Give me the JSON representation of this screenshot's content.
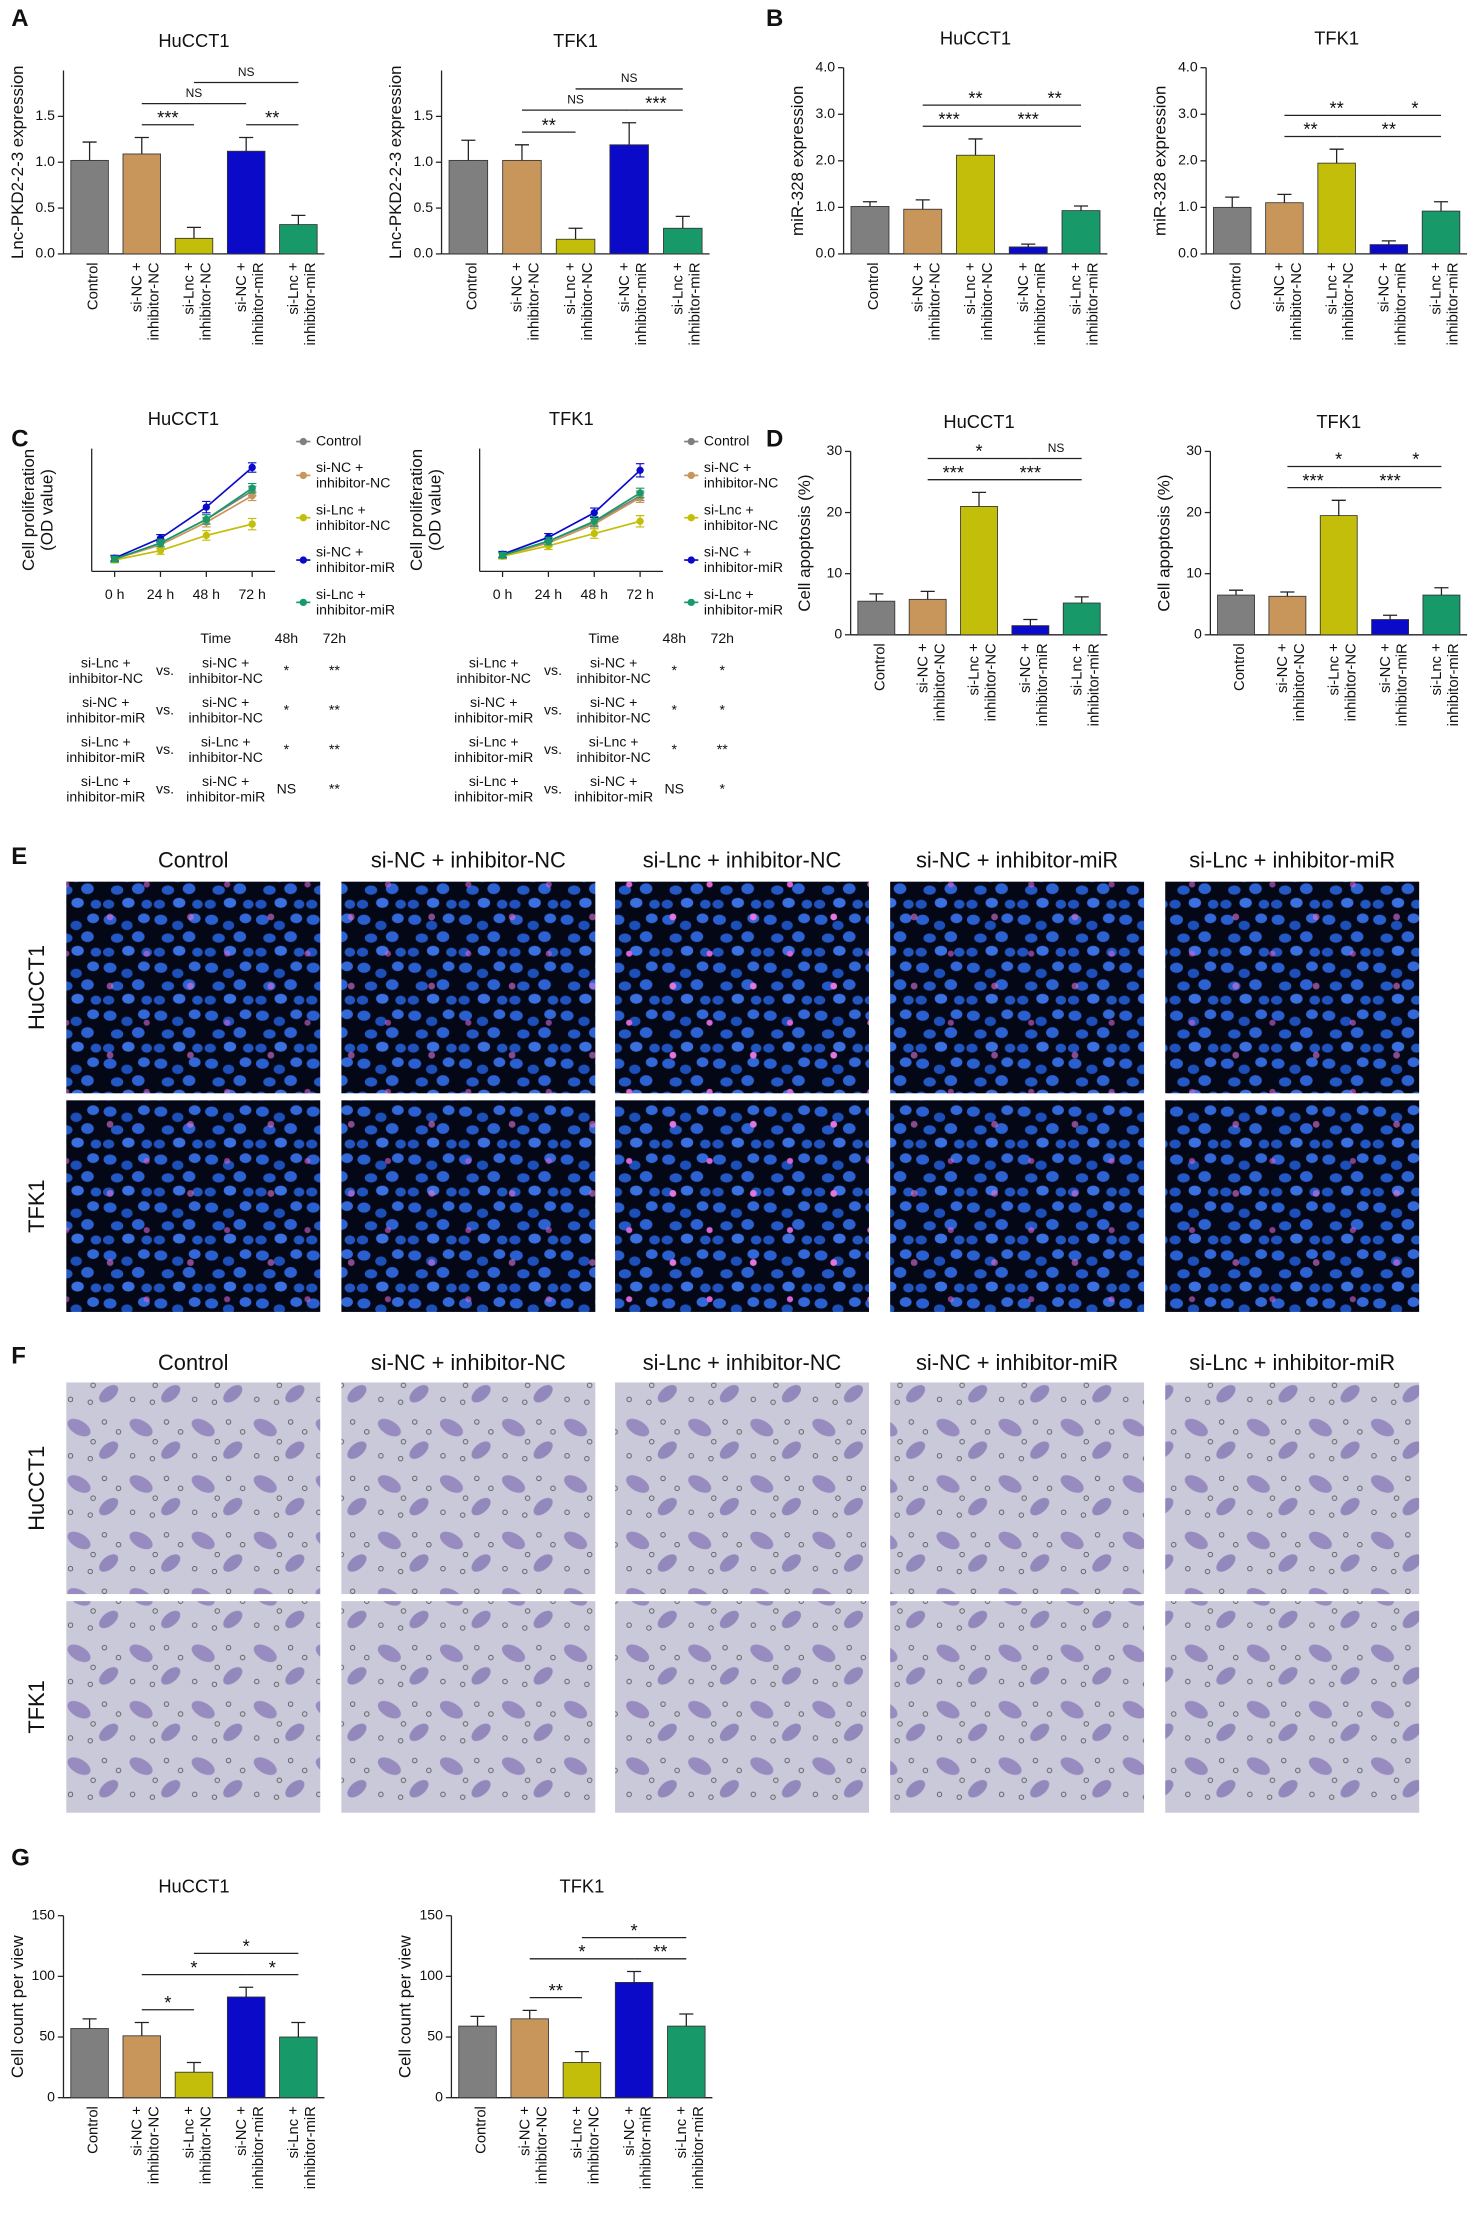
{
  "panel_labels": [
    "A",
    "B",
    "C",
    "D",
    "E",
    "F",
    "G"
  ],
  "chart_data": [
    {
      "type": "bar",
      "title": "HuCCT1",
      "ylabel": "Lnc-PKD2-2-3 expression",
      "categories": [
        [
          "Control"
        ],
        [
          "si-NC +",
          "inhibitor-NC"
        ],
        [
          "si-Lnc +",
          "inhibitor-NC"
        ],
        [
          "si-NC +",
          "inhibitor-miR"
        ],
        [
          "si-Lnc +",
          "inhibitor-miR"
        ]
      ],
      "colors": [
        "#7f7f7f",
        "#c8955a",
        "#c2be0a",
        "#0a0ac8",
        "#17996a"
      ],
      "values": [
        1.02,
        1.09,
        0.17,
        1.12,
        0.32
      ],
      "errors": [
        0.2,
        0.18,
        0.12,
        0.15,
        0.1
      ],
      "ylim": [
        0,
        2
      ],
      "yticks": [
        {
          "value": 0,
          "label": "0.0"
        },
        {
          "value": 0.5,
          "label": "0.5"
        },
        {
          "value": 1,
          "label": "1.0"
        },
        {
          "value": 1.5,
          "label": "1.5"
        }
      ],
      "brackets": [
        {
          "from": 1,
          "to": 2,
          "label": "***"
        },
        {
          "from": 3,
          "to": 4,
          "label": "**"
        },
        {
          "from": 1,
          "to": 3,
          "label": "NS"
        },
        {
          "from": 2,
          "to": 4,
          "label": "NS"
        }
      ]
    },
    {
      "type": "bar",
      "title": "TFK1",
      "ylabel": "Lnc-PKD2-2-3 expression",
      "categories": [
        [
          "Control"
        ],
        [
          "si-NC +",
          "inhibitor-NC"
        ],
        [
          "si-Lnc +",
          "inhibitor-NC"
        ],
        [
          "si-NC +",
          "inhibitor-miR"
        ],
        [
          "si-Lnc +",
          "inhibitor-miR"
        ]
      ],
      "colors": [
        "#7f7f7f",
        "#c8955a",
        "#c2be0a",
        "#0a0ac8",
        "#17996a"
      ],
      "values": [
        1.02,
        1.02,
        0.16,
        1.19,
        0.28
      ],
      "errors": [
        0.22,
        0.17,
        0.12,
        0.24,
        0.13
      ],
      "ylim": [
        0,
        2
      ],
      "yticks": [
        {
          "value": 0,
          "label": "0.0"
        },
        {
          "value": 0.5,
          "label": "0.5"
        },
        {
          "value": 1,
          "label": "1.0"
        },
        {
          "value": 1.5,
          "label": "1.5"
        }
      ],
      "brackets": [
        {
          "from": 1,
          "to": 2,
          "label": "**"
        },
        {
          "from": 3,
          "to": 4,
          "label": "***"
        },
        {
          "from": 1,
          "to": 3,
          "label": "NS"
        },
        {
          "from": 2,
          "to": 4,
          "label": "NS"
        }
      ]
    },
    {
      "type": "bar",
      "title": "HuCCT1",
      "ylabel": "miR-328 expression",
      "categories": [
        [
          "Control"
        ],
        [
          "si-NC +",
          "inhibitor-NC"
        ],
        [
          "si-Lnc +",
          "inhibitor-NC"
        ],
        [
          "si-NC +",
          "inhibitor-miR"
        ],
        [
          "si-Lnc +",
          "inhibitor-miR"
        ]
      ],
      "colors": [
        "#7f7f7f",
        "#c8955a",
        "#c2be0a",
        "#0a0ac8",
        "#17996a"
      ],
      "values": [
        1.02,
        0.96,
        2.12,
        0.15,
        0.93
      ],
      "errors": [
        0.1,
        0.2,
        0.35,
        0.06,
        0.1
      ],
      "ylim": [
        0,
        4
      ],
      "yticks": [
        {
          "value": 0,
          "label": "0.0"
        },
        {
          "value": 1,
          "label": "1.0"
        },
        {
          "value": 2,
          "label": "2.0"
        },
        {
          "value": 3,
          "label": "3.0"
        },
        {
          "value": 4,
          "label": "4.0"
        }
      ],
      "brackets": [
        {
          "from": 1,
          "to": 2,
          "label": "***"
        },
        {
          "from": 2,
          "to": 4,
          "label": "***"
        },
        {
          "from": 3,
          "to": 4,
          "label": "**"
        },
        {
          "from": 1,
          "to": 3,
          "label": "**"
        }
      ]
    },
    {
      "type": "bar",
      "title": "TFK1",
      "ylabel": "miR-328 expression",
      "categories": [
        [
          "Control"
        ],
        [
          "si-NC +",
          "inhibitor-NC"
        ],
        [
          "si-Lnc +",
          "inhibitor-NC"
        ],
        [
          "si-NC +",
          "inhibitor-miR"
        ],
        [
          "si-Lnc +",
          "inhibitor-miR"
        ]
      ],
      "colors": [
        "#7f7f7f",
        "#c8955a",
        "#c2be0a",
        "#0a0ac8",
        "#17996a"
      ],
      "values": [
        1.0,
        1.1,
        1.95,
        0.2,
        0.92
      ],
      "errors": [
        0.22,
        0.18,
        0.3,
        0.08,
        0.2
      ],
      "ylim": [
        0,
        4
      ],
      "yticks": [
        {
          "value": 0,
          "label": "0.0"
        },
        {
          "value": 1,
          "label": "1.0"
        },
        {
          "value": 2,
          "label": "2.0"
        },
        {
          "value": 3,
          "label": "3.0"
        },
        {
          "value": 4,
          "label": "4.0"
        }
      ],
      "brackets": [
        {
          "from": 1,
          "to": 2,
          "label": "**"
        },
        {
          "from": 2,
          "to": 4,
          "label": "**"
        },
        {
          "from": 3,
          "to": 4,
          "label": "*"
        },
        {
          "from": 1,
          "to": 3,
          "label": "**"
        }
      ]
    },
    {
      "type": "line",
      "title": "HuCCT1",
      "ylabel": [
        "Cell proliferation",
        "(OD value)"
      ],
      "categories": [
        "0 h",
        "24 h",
        "48 h",
        "72 h"
      ],
      "ylim": [
        0.2,
        1.5
      ],
      "series": [
        {
          "name": [
            "Control"
          ],
          "color": "#7f7f7f",
          "values": [
            0.33,
            0.5,
            0.75,
            1.05
          ],
          "errors": [
            0.03,
            0.04,
            0.05,
            0.05
          ]
        },
        {
          "name": [
            "si-NC +",
            "inhibitor-NC"
          ],
          "color": "#c8955a",
          "values": [
            0.33,
            0.48,
            0.72,
            1.0
          ],
          "errors": [
            0.03,
            0.04,
            0.05,
            0.05
          ]
        },
        {
          "name": [
            "si-Lnc +",
            "inhibitor-NC"
          ],
          "color": "#c2be0a",
          "values": [
            0.32,
            0.42,
            0.58,
            0.7
          ],
          "errors": [
            0.03,
            0.04,
            0.05,
            0.06
          ]
        },
        {
          "name": [
            "si-NC +",
            "inhibitor-miR"
          ],
          "color": "#0a0ac8",
          "values": [
            0.34,
            0.55,
            0.88,
            1.3
          ],
          "errors": [
            0.03,
            0.04,
            0.06,
            0.05
          ]
        },
        {
          "name": [
            "si-Lnc +",
            "inhibitor-miR"
          ],
          "color": "#17996a",
          "values": [
            0.33,
            0.5,
            0.75,
            1.08
          ],
          "errors": [
            0.03,
            0.04,
            0.05,
            0.05
          ]
        }
      ],
      "table": {
        "header": [
          "Time",
          "48h",
          "72h"
        ],
        "rows": [
          {
            "left": [
              "si-Lnc +",
              "inhibitor-NC"
            ],
            "vs": "vs.",
            "right": [
              "si-NC +",
              "inhibitor-NC"
            ],
            "cells": [
              "*",
              "**"
            ]
          },
          {
            "left": [
              "si-NC +",
              "inhibitor-miR"
            ],
            "vs": "vs.",
            "right": [
              "si-NC +",
              "inhibitor-NC"
            ],
            "cells": [
              "*",
              "**"
            ]
          },
          {
            "left": [
              "si-Lnc +",
              "inhibitor-miR"
            ],
            "vs": "vs.",
            "right": [
              "si-Lnc +",
              "inhibitor-NC"
            ],
            "cells": [
              "*",
              "**"
            ]
          },
          {
            "left": [
              "si-Lnc +",
              "inhibitor-miR"
            ],
            "vs": "vs.",
            "right": [
              "si-NC +",
              "inhibitor-miR"
            ],
            "cells": [
              "NS",
              "**"
            ]
          }
        ]
      }
    },
    {
      "type": "line",
      "title": "TFK1",
      "ylabel": [
        "Cell proliferation",
        "(OD value)"
      ],
      "categories": [
        "0 h",
        "24 h",
        "48 h",
        "72 h"
      ],
      "ylim": [
        0.2,
        1.5
      ],
      "series": [
        {
          "name": [
            "Control"
          ],
          "color": "#7f7f7f",
          "values": [
            0.37,
            0.52,
            0.72,
            1.0
          ],
          "errors": [
            0.03,
            0.04,
            0.05,
            0.05
          ]
        },
        {
          "name": [
            "si-NC +",
            "inhibitor-NC"
          ],
          "color": "#c8955a",
          "values": [
            0.37,
            0.5,
            0.7,
            0.98
          ],
          "errors": [
            0.03,
            0.04,
            0.05,
            0.05
          ]
        },
        {
          "name": [
            "si-Lnc +",
            "inhibitor-NC"
          ],
          "color": "#c2be0a",
          "values": [
            0.36,
            0.47,
            0.6,
            0.73
          ],
          "errors": [
            0.03,
            0.04,
            0.05,
            0.06
          ]
        },
        {
          "name": [
            "si-NC +",
            "inhibitor-miR"
          ],
          "color": "#0a0ac8",
          "values": [
            0.38,
            0.56,
            0.82,
            1.27
          ],
          "errors": [
            0.03,
            0.04,
            0.05,
            0.07
          ]
        },
        {
          "name": [
            "si-Lnc +",
            "inhibitor-miR"
          ],
          "color": "#17996a",
          "values": [
            0.37,
            0.52,
            0.73,
            1.03
          ],
          "errors": [
            0.03,
            0.04,
            0.05,
            0.05
          ]
        }
      ],
      "table": {
        "header": [
          "Time",
          "48h",
          "72h"
        ],
        "rows": [
          {
            "left": [
              "si-Lnc +",
              "inhibitor-NC"
            ],
            "vs": "vs.",
            "right": [
              "si-NC +",
              "inhibitor-NC"
            ],
            "cells": [
              "*",
              "*"
            ]
          },
          {
            "left": [
              "si-NC +",
              "inhibitor-miR"
            ],
            "vs": "vs.",
            "right": [
              "si-NC +",
              "inhibitor-NC"
            ],
            "cells": [
              "*",
              "*"
            ]
          },
          {
            "left": [
              "si-Lnc +",
              "inhibitor-miR"
            ],
            "vs": "vs.",
            "right": [
              "si-Lnc +",
              "inhibitor-NC"
            ],
            "cells": [
              "*",
              "**"
            ]
          },
          {
            "left": [
              "si-Lnc +",
              "inhibitor-miR"
            ],
            "vs": "vs.",
            "right": [
              "si-NC +",
              "inhibitor-miR"
            ],
            "cells": [
              "NS",
              "*"
            ]
          }
        ]
      }
    },
    {
      "type": "bar",
      "title": "HuCCT1",
      "ylabel": "Cell apoptosis (%)",
      "categories": [
        [
          "Control"
        ],
        [
          "si-NC +",
          "inhibitor-NC"
        ],
        [
          "si-Lnc +",
          "inhibitor-NC"
        ],
        [
          "si-NC +",
          "inhibitor-miR"
        ],
        [
          "si-Lnc +",
          "inhibitor-miR"
        ]
      ],
      "colors": [
        "#7f7f7f",
        "#c8955a",
        "#c2be0a",
        "#0a0ac8",
        "#17996a"
      ],
      "values": [
        5.5,
        5.8,
        21,
        1.5,
        5.2
      ],
      "errors": [
        1.2,
        1.3,
        2.3,
        1,
        1
      ],
      "ylim": [
        0,
        30
      ],
      "yticks": [
        0,
        10,
        20,
        30
      ],
      "brackets": [
        {
          "from": 1,
          "to": 2,
          "label": "***"
        },
        {
          "from": 2,
          "to": 4,
          "label": "***"
        },
        {
          "from": 3,
          "to": 4,
          "label": "NS"
        },
        {
          "from": 1,
          "to": 3,
          "label": "*"
        }
      ]
    },
    {
      "type": "bar",
      "title": "TFK1",
      "ylabel": "Cell apoptosis (%)",
      "categories": [
        [
          "Control"
        ],
        [
          "si-NC +",
          "inhibitor-NC"
        ],
        [
          "si-Lnc +",
          "inhibitor-NC"
        ],
        [
          "si-NC +",
          "inhibitor-miR"
        ],
        [
          "si-Lnc +",
          "inhibitor-miR"
        ]
      ],
      "colors": [
        "#7f7f7f",
        "#c8955a",
        "#c2be0a",
        "#0a0ac8",
        "#17996a"
      ],
      "values": [
        6.5,
        6.3,
        19.5,
        2.5,
        6.5
      ],
      "errors": [
        0.8,
        0.7,
        2.5,
        0.7,
        1.2
      ],
      "ylim": [
        0,
        30
      ],
      "yticks": [
        0,
        10,
        20,
        30
      ],
      "brackets": [
        {
          "from": 1,
          "to": 2,
          "label": "***"
        },
        {
          "from": 2,
          "to": 4,
          "label": "***"
        },
        {
          "from": 3,
          "to": 4,
          "label": "*"
        },
        {
          "from": 1,
          "to": 3,
          "label": "*"
        }
      ]
    },
    {
      "type": "bar",
      "title": "HuCCT1",
      "ylabel": "Cell count per view",
      "categories": [
        [
          "Control"
        ],
        [
          "si-NC +",
          "inhibitor-NC"
        ],
        [
          "si-Lnc +",
          "inhibitor-NC"
        ],
        [
          "si-NC +",
          "inhibitor-miR"
        ],
        [
          "si-Lnc +",
          "inhibitor-miR"
        ]
      ],
      "colors": [
        "#7f7f7f",
        "#c8955a",
        "#c2be0a",
        "#0a0ac8",
        "#17996a"
      ],
      "values": [
        57,
        51,
        21,
        83,
        50
      ],
      "errors": [
        8,
        11,
        8,
        8,
        12
      ],
      "ylim": [
        0,
        150
      ],
      "yticks": [
        0,
        50,
        100,
        150
      ],
      "brackets": [
        {
          "from": 1,
          "to": 2,
          "label": "*"
        },
        {
          "from": 3,
          "to": 4,
          "label": "*"
        },
        {
          "from": 1,
          "to": 3,
          "label": "*"
        },
        {
          "from": 2,
          "to": 4,
          "label": "*"
        }
      ]
    },
    {
      "type": "bar",
      "title": "TFK1",
      "ylabel": "Cell count per view",
      "categories": [
        [
          "Control"
        ],
        [
          "si-NC +",
          "inhibitor-NC"
        ],
        [
          "si-Lnc +",
          "inhibitor-NC"
        ],
        [
          "si-NC +",
          "inhibitor-miR"
        ],
        [
          "si-Lnc +",
          "inhibitor-miR"
        ]
      ],
      "colors": [
        "#7f7f7f",
        "#c8955a",
        "#c2be0a",
        "#0a0ac8",
        "#17996a"
      ],
      "values": [
        59,
        65,
        29,
        95,
        59
      ],
      "errors": [
        8,
        7,
        9,
        9,
        10
      ],
      "ylim": [
        0,
        150
      ],
      "yticks": [
        0,
        50,
        100,
        150
      ],
      "brackets": [
        {
          "from": 1,
          "to": 2,
          "label": "**"
        },
        {
          "from": 3,
          "to": 4,
          "label": "**"
        },
        {
          "from": 1,
          "to": 3,
          "label": "*"
        },
        {
          "from": 2,
          "to": 4,
          "label": "*"
        }
      ]
    }
  ],
  "image_panels": [
    {
      "columns": [
        "Control",
        "si-NC + inhibitor-NC",
        "si-Lnc + inhibitor-NC",
        "si-NC + inhibitor-miR",
        "si-Lnc + inhibitor-miR"
      ],
      "rows": [
        "HuCCT1",
        "TFK1"
      ]
    },
    {
      "columns": [
        "Control",
        "si-NC + inhibitor-NC",
        "si-Lnc + inhibitor-NC",
        "si-NC + inhibitor-miR",
        "si-Lnc + inhibitor-miR"
      ],
      "rows": [
        "HuCCT1",
        "TFK1"
      ]
    }
  ]
}
